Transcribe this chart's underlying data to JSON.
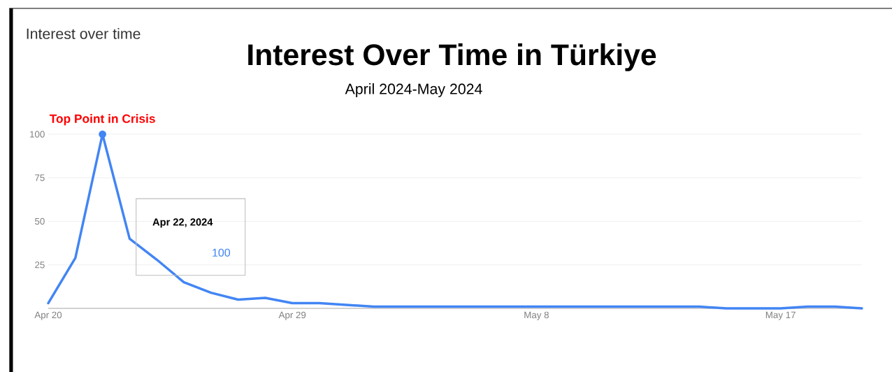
{
  "chart_data": {
    "type": "line",
    "title": "Interest Over Time in Türkiye",
    "subtitle": "April 2024-May 2024",
    "annotations": [
      "Interest over time",
      {
        "text": "Top Point in Crisis",
        "x": "2024-04-22",
        "y": 100
      },
      "Apr 22, 2024",
      "100"
    ],
    "x": [
      "2024-04-20",
      "2024-04-21",
      "2024-04-22",
      "2024-04-23",
      "2024-04-24",
      "2024-04-25",
      "2024-04-26",
      "2024-04-27",
      "2024-04-28",
      "2024-04-29",
      "2024-04-30",
      "2024-05-01",
      "2024-05-02",
      "2024-05-03",
      "2024-05-04",
      "2024-05-05",
      "2024-05-06",
      "2024-05-07",
      "2024-05-08",
      "2024-05-09",
      "2024-05-10",
      "2024-05-11",
      "2024-05-12",
      "2024-05-13",
      "2024-05-14",
      "2024-05-15",
      "2024-05-16",
      "2024-05-17",
      "2024-05-18",
      "2024-05-19",
      "2024-05-20"
    ],
    "series": [
      {
        "color": "#4285f4",
        "values": [
          3,
          29,
          100,
          40,
          28,
          15,
          9,
          5,
          6,
          3,
          3,
          2,
          1,
          1,
          1,
          1,
          1,
          1,
          1,
          1,
          1,
          1,
          1,
          1,
          1,
          0,
          0,
          0,
          1,
          1,
          0
        ]
      }
    ],
    "xlim": [
      "2024-04-20",
      "2024-05-20"
    ],
    "xticks": [
      {
        "value": "2024-04-20",
        "label": "Apr 20"
      },
      {
        "value": "2024-04-29",
        "label": "Apr 29"
      },
      {
        "value": "2024-05-08",
        "label": "May 8"
      },
      {
        "value": "2024-05-17",
        "label": "May 17"
      }
    ],
    "ylim": [
      0,
      100
    ],
    "yticks": [
      25,
      50,
      75,
      100
    ],
    "grid": "y",
    "marker": "none",
    "line_style": "solid"
  }
}
